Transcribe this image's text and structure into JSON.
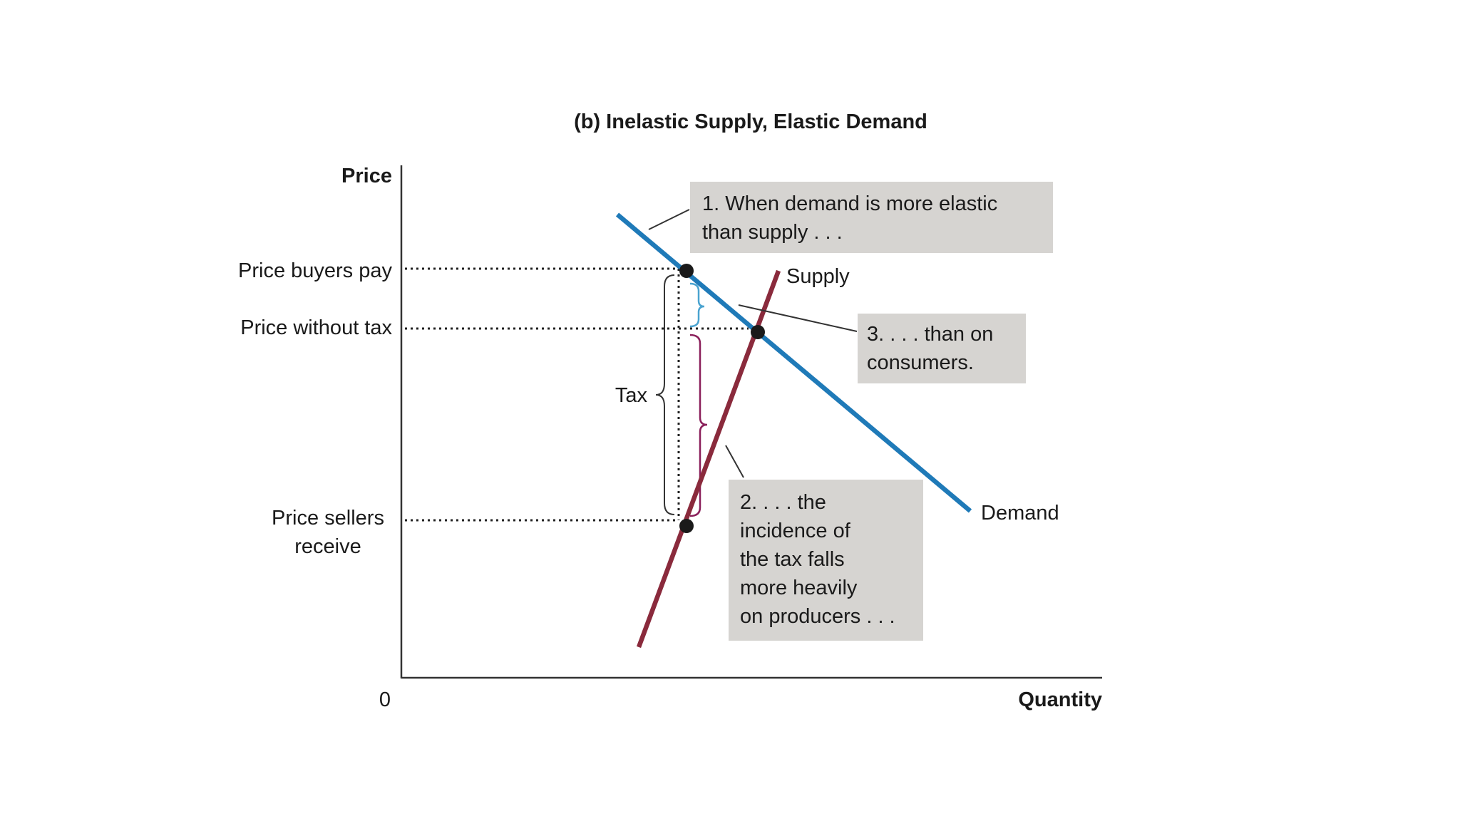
{
  "title": "(b) Inelastic Supply, Elastic Demand",
  "axes": {
    "y_title": "Price",
    "x_title": "Quantity",
    "origin": "0"
  },
  "price_labels": {
    "buyers_pay": "Price buyers pay",
    "without_tax": "Price without tax",
    "sellers_receive_line1": "Price sellers",
    "sellers_receive_line2": "receive"
  },
  "curves": {
    "supply": {
      "label": "Supply",
      "color": "#8a2a3c"
    },
    "demand": {
      "label": "Demand",
      "color": "#1f7ab8"
    }
  },
  "tax_label": "Tax",
  "brace_colors": {
    "consumer_share": "#4aa3d0",
    "producer_share": "#8a1f5a"
  },
  "annotations": {
    "note1": [
      "1. When demand is more elastic",
      "than supply . . ."
    ],
    "note2": [
      "2. . . . the",
      "incidence of",
      "the tax falls",
      "more heavily",
      "on producers . . ."
    ],
    "note3": [
      "3. . . . than on",
      "consumers."
    ]
  }
}
